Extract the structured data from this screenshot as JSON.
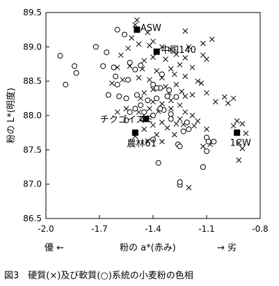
{
  "chart_data": {
    "type": "scatter",
    "xlabel": "粉の a*(赤み)",
    "xlabel_left": "優 ←",
    "xlabel_right": "→ 劣",
    "ylabel": "粉の L*(明度)",
    "xlim": [
      -2.0,
      -0.8
    ],
    "ylim": [
      86.5,
      89.5
    ],
    "x_ticks": [
      -2.0,
      -1.7,
      -1.4,
      -1.1,
      -0.8
    ],
    "x_tick_labels": [
      "-2.0",
      "-1.7",
      "-1.4",
      "-1.1",
      "-0.8"
    ],
    "y_ticks": [
      86.5,
      87.0,
      87.5,
      88.0,
      88.5,
      89.0,
      89.5
    ],
    "y_tick_labels": [
      "86.5",
      "87.0",
      "87.5",
      "88.0",
      "88.5",
      "89.0",
      "89.5"
    ],
    "grid": false,
    "caption": "図3　硬質(×)及び軟質(○)系統の小麦粉の色相",
    "series": [
      {
        "marker": "cross",
        "points": [
          [
            -1.49,
            89.39
          ],
          [
            -1.5,
            89.32
          ],
          [
            -1.43,
            89.21
          ],
          [
            -1.52,
            89.13
          ],
          [
            -1.4,
            89.08
          ],
          [
            -1.22,
            89.23
          ],
          [
            -1.48,
            89.04
          ],
          [
            -1.42,
            89.02
          ],
          [
            -1.35,
            89.0
          ],
          [
            -1.3,
            88.96
          ],
          [
            -1.2,
            89.0
          ],
          [
            -1.12,
            89.05
          ],
          [
            -1.07,
            89.11
          ],
          [
            -1.54,
            88.98
          ],
          [
            -1.58,
            88.88
          ],
          [
            -1.4,
            88.85
          ],
          [
            -1.45,
            88.8
          ],
          [
            -1.33,
            88.82
          ],
          [
            -1.27,
            88.89
          ],
          [
            -1.22,
            88.84
          ],
          [
            -1.25,
            88.74
          ],
          [
            -1.18,
            88.7
          ],
          [
            -1.12,
            88.88
          ],
          [
            -1.1,
            88.82
          ],
          [
            -1.6,
            88.7
          ],
          [
            -1.53,
            88.72
          ],
          [
            -1.46,
            88.68
          ],
          [
            -1.38,
            88.65
          ],
          [
            -1.3,
            88.68
          ],
          [
            -1.28,
            88.6
          ],
          [
            -1.22,
            88.57
          ],
          [
            -1.35,
            88.55
          ],
          [
            -1.42,
            88.52
          ],
          [
            -1.48,
            88.55
          ],
          [
            -1.57,
            88.52
          ],
          [
            -1.63,
            88.47
          ],
          [
            -1.33,
            88.42
          ],
          [
            -1.27,
            88.45
          ],
          [
            -1.15,
            88.5
          ],
          [
            -1.13,
            88.47
          ],
          [
            -1.4,
            88.38
          ],
          [
            -1.45,
            88.33
          ],
          [
            -1.31,
            88.33
          ],
          [
            -1.24,
            88.35
          ],
          [
            -1.22,
            88.28
          ],
          [
            -1.18,
            88.3
          ],
          [
            -1.1,
            88.33
          ],
          [
            -1.0,
            88.27
          ],
          [
            -0.95,
            88.25
          ],
          [
            -0.98,
            88.18
          ],
          [
            -1.05,
            88.2
          ],
          [
            -1.47,
            88.25
          ],
          [
            -1.4,
            88.2
          ],
          [
            -1.35,
            88.17
          ],
          [
            -1.3,
            88.22
          ],
          [
            -1.25,
            88.15
          ],
          [
            -1.3,
            88.1
          ],
          [
            -1.37,
            88.06
          ],
          [
            -1.42,
            88.1
          ],
          [
            -1.48,
            88.05
          ],
          [
            -1.55,
            88.1
          ],
          [
            -1.6,
            88.05
          ],
          [
            -1.22,
            88.05
          ],
          [
            -1.18,
            88.0
          ],
          [
            -1.25,
            87.95
          ],
          [
            -1.15,
            87.92
          ],
          [
            -1.35,
            87.9
          ],
          [
            -1.4,
            87.86
          ],
          [
            -1.32,
            87.82
          ],
          [
            -1.27,
            87.88
          ],
          [
            -1.23,
            87.87
          ],
          [
            -1.17,
            87.85
          ],
          [
            -1.1,
            87.8
          ],
          [
            -0.93,
            87.92
          ],
          [
            -0.9,
            87.88
          ],
          [
            -0.95,
            87.85
          ],
          [
            -0.88,
            87.74
          ],
          [
            -1.45,
            87.8
          ],
          [
            -1.38,
            87.72
          ],
          [
            -1.35,
            87.62
          ],
          [
            -1.43,
            87.63
          ],
          [
            -1.5,
            87.7
          ],
          [
            -1.28,
            87.72
          ],
          [
            -1.12,
            87.55
          ],
          [
            -1.08,
            87.58
          ],
          [
            -0.92,
            87.6
          ],
          [
            -0.9,
            87.52
          ],
          [
            -0.92,
            87.35
          ],
          [
            -1.2,
            86.95
          ],
          [
            -1.25,
            87.0
          ]
        ]
      },
      {
        "marker": "circle",
        "points": [
          [
            -1.92,
            88.87
          ],
          [
            -1.84,
            88.72
          ],
          [
            -1.83,
            88.62
          ],
          [
            -1.89,
            88.45
          ],
          [
            -1.72,
            89.0
          ],
          [
            -1.66,
            88.92
          ],
          [
            -1.6,
            89.25
          ],
          [
            -1.56,
            89.18
          ],
          [
            -1.68,
            88.72
          ],
          [
            -1.62,
            88.7
          ],
          [
            -1.53,
            88.77
          ],
          [
            -1.47,
            88.73
          ],
          [
            -1.5,
            88.67
          ],
          [
            -1.61,
            88.57
          ],
          [
            -1.54,
            88.52
          ],
          [
            -1.6,
            88.45
          ],
          [
            -1.65,
            88.3
          ],
          [
            -1.59,
            88.28
          ],
          [
            -1.55,
            88.25
          ],
          [
            -1.49,
            88.3
          ],
          [
            -1.43,
            88.22
          ],
          [
            -1.35,
            88.6
          ],
          [
            -1.4,
            88.45
          ],
          [
            -1.36,
            88.4
          ],
          [
            -1.31,
            88.37
          ],
          [
            -1.32,
            88.28
          ],
          [
            -1.38,
            88.25
          ],
          [
            -1.27,
            88.27
          ],
          [
            -1.5,
            88.1
          ],
          [
            -1.47,
            88.15
          ],
          [
            -1.45,
            88.05
          ],
          [
            -1.53,
            88.05
          ],
          [
            -1.4,
            88.0
          ],
          [
            -1.34,
            88.08
          ],
          [
            -1.3,
            88.02
          ],
          [
            -1.46,
            87.95
          ],
          [
            -1.36,
            88.1
          ],
          [
            -1.3,
            87.95
          ],
          [
            -1.21,
            87.9
          ],
          [
            -1.2,
            87.8
          ],
          [
            -1.23,
            87.77
          ],
          [
            -1.1,
            87.68
          ],
          [
            -1.09,
            87.62
          ],
          [
            -1.1,
            87.48
          ],
          [
            -1.06,
            87.62
          ],
          [
            -1.26,
            87.58
          ],
          [
            -1.25,
            87.55
          ],
          [
            -1.37,
            87.31
          ],
          [
            -1.12,
            87.25
          ],
          [
            -1.25,
            86.99
          ],
          [
            -1.25,
            87.03
          ],
          [
            -1.4,
            87.65
          ],
          [
            -1.38,
            88.4
          ],
          [
            -1.55,
            87.93
          ]
        ]
      },
      {
        "marker": "square",
        "points": [
          [
            -1.49,
            89.25
          ],
          [
            -1.38,
            88.93
          ],
          [
            -1.5,
            87.75
          ],
          [
            -1.44,
            87.95
          ],
          [
            -0.93,
            87.75
          ]
        ]
      }
    ],
    "annotations": [
      {
        "text": "ASW",
        "x": -1.49,
        "y": 89.25
      },
      {
        "text": "中国140",
        "x": -1.38,
        "y": 88.93
      },
      {
        "text": "チクゴイズミ",
        "x": -1.44,
        "y": 87.95
      },
      {
        "text": "農林61",
        "x": -1.5,
        "y": 87.75
      },
      {
        "text": "1CW",
        "x": -0.93,
        "y": 87.75
      }
    ]
  }
}
